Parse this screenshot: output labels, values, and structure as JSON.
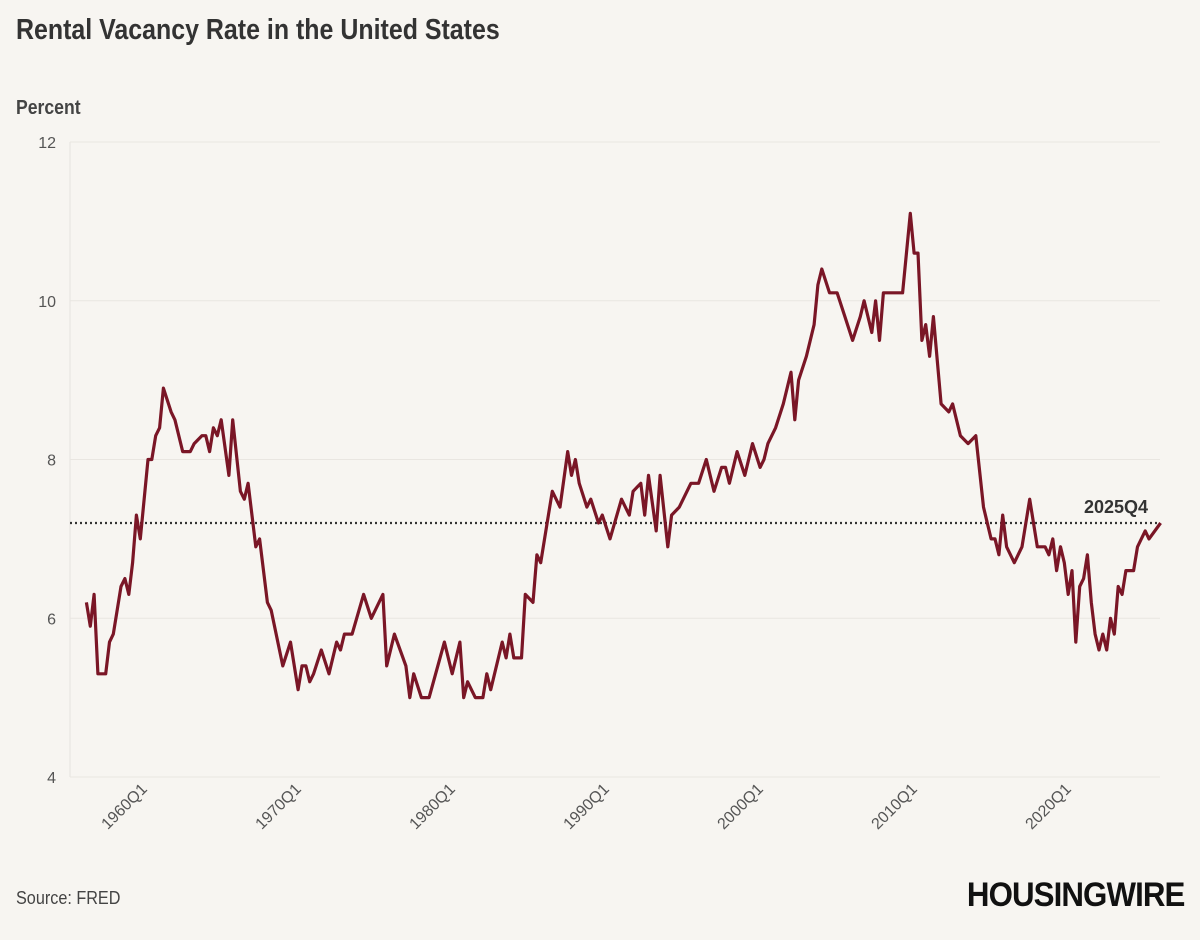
{
  "chart_data": {
    "type": "line",
    "title": "Rental Vacancy Rate in the United States",
    "ylabel": "Percent",
    "xlabel": "",
    "ylim": [
      4,
      12
    ],
    "yticks": [
      "4",
      "6",
      "8",
      "10",
      "12"
    ],
    "xticks": [
      "1960Q1",
      "1970Q1",
      "1980Q1",
      "1990Q1",
      "2000Q1",
      "2010Q1",
      "2020Q1"
    ],
    "grid": "horizontal",
    "line_color": "#7a1626",
    "reference_line": {
      "value": 7.2,
      "label": "2025Q4",
      "style": "dotted"
    },
    "series": [
      {
        "x": [
          "1956Q1",
          "1956Q2",
          "1956Q3",
          "1956Q4",
          "1957Q2",
          "1957Q3",
          "1957Q4",
          "1958Q2",
          "1958Q3",
          "1958Q4",
          "1959Q1",
          "1959Q2",
          "1959Q3",
          "1960Q1",
          "1960Q2",
          "1960Q3",
          "1960Q4",
          "1961Q1",
          "1961Q3",
          "1961Q4",
          "1962Q2",
          "1962Q4",
          "1963Q1",
          "1963Q3",
          "1963Q4",
          "1964Q1",
          "1964Q2",
          "1964Q3",
          "1964Q4",
          "1965Q2",
          "1965Q3",
          "1966Q1",
          "1966Q2",
          "1966Q3",
          "1967Q1",
          "1967Q2",
          "1967Q4",
          "1968Q1",
          "1968Q4",
          "1969Q2",
          "1969Q4",
          "1970Q1",
          "1970Q2",
          "1970Q3",
          "1970Q4",
          "1971Q2",
          "1971Q4",
          "1972Q2",
          "1972Q3",
          "1972Q4",
          "1973Q2",
          "1974Q1",
          "1974Q3",
          "1975Q2",
          "1975Q3",
          "1976Q1",
          "1976Q4",
          "1977Q1",
          "1977Q2",
          "1977Q4",
          "1978Q2",
          "1979Q2",
          "1979Q4",
          "1980Q2",
          "1980Q3",
          "1980Q4",
          "1981Q2",
          "1981Q4",
          "1982Q1",
          "1982Q2",
          "1983Q1",
          "1983Q2",
          "1983Q3",
          "1983Q4",
          "1984Q2",
          "1984Q3",
          "1985Q1",
          "1985Q2",
          "1985Q3",
          "1986Q1",
          "1986Q2",
          "1986Q4",
          "1987Q2",
          "1987Q3",
          "1987Q4",
          "1988Q1",
          "1988Q3",
          "1988Q4",
          "1989Q2",
          "1989Q3",
          "1990Q1",
          "1990Q4",
          "1991Q2",
          "1991Q3",
          "1992Q1",
          "1992Q2",
          "1992Q3",
          "1993Q1",
          "1993Q2",
          "1993Q4",
          "1994Q1",
          "1994Q3",
          "1995Q2",
          "1995Q4",
          "1996Q2",
          "1996Q4",
          "1997Q2",
          "1997Q3",
          "1997Q4",
          "1998Q2",
          "1998Q4",
          "1999Q2",
          "1999Q4",
          "2000Q1",
          "2000Q2",
          "2000Q4",
          "2001Q2",
          "2001Q4",
          "2002Q1",
          "2002Q2",
          "2002Q4",
          "2003Q2",
          "2003Q3",
          "2003Q4",
          "2004Q2",
          "2004Q4",
          "2005Q2",
          "2005Q4",
          "2006Q2",
          "2006Q3",
          "2007Q1",
          "2007Q2",
          "2007Q3",
          "2007Q4",
          "2008Q3",
          "2009Q1",
          "2009Q3",
          "2009Q4",
          "2010Q1",
          "2010Q2",
          "2010Q3",
          "2010Q4",
          "2011Q1",
          "2011Q3",
          "2012Q1",
          "2012Q2",
          "2012Q4",
          "2013Q2",
          "2013Q4",
          "2014Q2",
          "2014Q4",
          "2015Q1",
          "2015Q2",
          "2015Q3",
          "2015Q4",
          "2016Q2",
          "2016Q4",
          "2017Q2",
          "2017Q4",
          "2018Q2",
          "2018Q3",
          "2018Q4",
          "2019Q1",
          "2019Q2",
          "2019Q3",
          "2019Q4",
          "2020Q1",
          "2020Q2",
          "2020Q3",
          "2020Q4",
          "2021Q1",
          "2021Q2",
          "2021Q3",
          "2021Q4",
          "2022Q1",
          "2022Q2",
          "2022Q3",
          "2022Q4",
          "2023Q1",
          "2023Q2",
          "2023Q3",
          "2024Q1",
          "2024Q2",
          "2024Q4",
          "2025Q1",
          "2025Q4"
        ],
        "y": [
          6.2,
          5.9,
          6.3,
          5.3,
          5.3,
          5.7,
          5.8,
          6.4,
          6.5,
          6.3,
          6.7,
          7.3,
          7.0,
          8.0,
          8.0,
          8.3,
          8.4,
          8.9,
          8.6,
          8.5,
          8.1,
          8.1,
          8.2,
          8.3,
          8.3,
          8.1,
          8.4,
          8.3,
          8.5,
          7.8,
          8.5,
          7.6,
          7.5,
          7.7,
          6.9,
          7.0,
          6.2,
          6.1,
          5.4,
          5.7,
          5.1,
          5.4,
          5.4,
          5.2,
          5.3,
          5.6,
          5.3,
          5.7,
          5.6,
          5.8,
          5.8,
          6.3,
          6.0,
          6.3,
          5.4,
          5.8,
          5.4,
          5.0,
          5.3,
          5.0,
          5.0,
          5.7,
          5.3,
          5.7,
          5.0,
          5.2,
          5.0,
          5.0,
          5.3,
          5.1,
          5.7,
          5.5,
          5.8,
          5.5,
          5.5,
          6.3,
          6.2,
          6.8,
          6.7,
          7.3,
          7.6,
          7.4,
          8.1,
          7.8,
          8.0,
          7.7,
          7.4,
          7.5,
          7.2,
          7.3,
          7.0,
          7.5,
          7.3,
          7.6,
          7.7,
          7.3,
          7.8,
          7.1,
          7.8,
          6.9,
          7.3,
          7.4,
          7.7,
          7.7,
          8.0,
          7.6,
          7.9,
          7.9,
          7.7,
          8.1,
          7.8,
          8.2,
          7.9,
          8.0,
          8.2,
          8.4,
          8.7,
          9.1,
          8.5,
          9.0,
          9.3,
          9.7,
          10.2,
          10.4,
          10.1,
          10.1,
          9.8,
          9.5,
          9.8,
          10.0,
          9.6,
          10.0,
          9.5,
          10.1,
          10.1,
          10.1,
          11.1,
          10.6,
          10.6,
          9.5,
          9.7,
          9.3,
          9.8,
          8.7,
          8.6,
          8.7,
          8.3,
          8.2,
          8.3,
          7.4,
          7.0,
          7.0,
          6.8,
          7.3,
          6.9,
          6.7,
          6.9,
          7.5,
          6.9,
          6.9,
          6.8,
          7.0,
          6.6,
          6.9,
          6.7,
          6.3,
          6.6,
          5.7,
          6.4,
          6.5,
          6.8,
          6.2,
          5.8,
          5.6,
          5.8,
          5.6,
          6.0,
          5.8,
          6.4,
          6.3,
          6.6,
          6.6,
          6.9,
          7.1,
          7.0,
          7.2
        ]
      }
    ]
  },
  "footer": {
    "source": "Source: FRED",
    "logo_text": "HOUSINGWIRE"
  }
}
